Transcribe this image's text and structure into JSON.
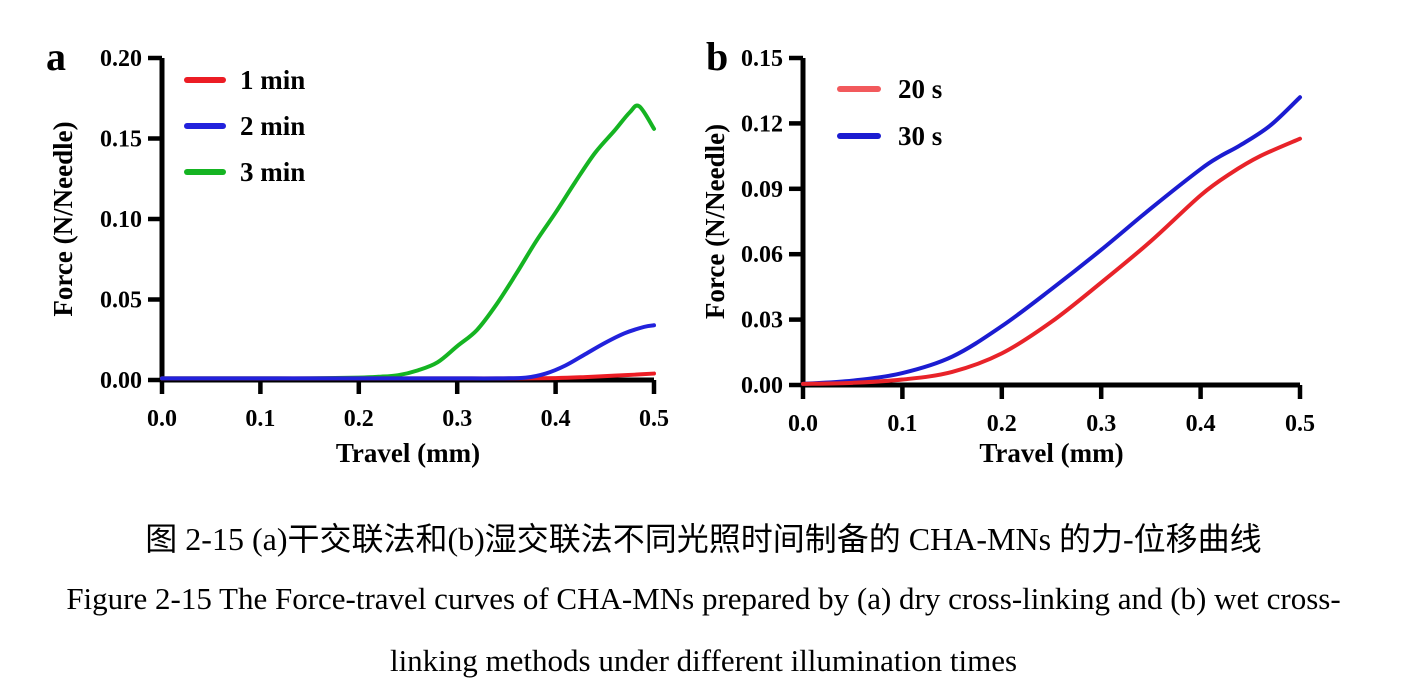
{
  "figure": {
    "caption_zh": "图 2-15 (a)干交联法和(b)湿交联法不同光照时间制备的 CHA-MNs 的力-位移曲线",
    "caption_en_line1": "Figure 2-15 The Force-travel curves of CHA-MNs prepared by (a) dry cross-linking and (b) wet cross-",
    "caption_en_line2": "linking methods under different illumination times"
  },
  "colors": {
    "axis": "#000000",
    "red_a": "#EC1C24",
    "blue_a": "#2222DC",
    "green_a": "#15B422",
    "red_b": "#E82329",
    "red_b_swatch": "#F2595C",
    "blue_b": "#1B1CD1"
  },
  "chart_data": [
    {
      "id": "a",
      "panel_label": "a",
      "type": "line",
      "title": "",
      "xlabel": "Travel (mm)",
      "ylabel": "Force (N/Needle)",
      "xlim": [
        0,
        0.5
      ],
      "ylim": [
        0,
        0.2
      ],
      "xticks": [
        "0.0",
        "0.1",
        "0.2",
        "0.3",
        "0.4",
        "0.5"
      ],
      "yticks": [
        "0.00",
        "0.05",
        "0.10",
        "0.15",
        "0.20"
      ],
      "grid": false,
      "legend_position": "top-left-inside",
      "series": [
        {
          "name": "1 min",
          "color": "#EC1C24",
          "x": [
            0,
            0.05,
            0.1,
            0.15,
            0.2,
            0.25,
            0.3,
            0.35,
            0.4,
            0.43,
            0.46,
            0.48,
            0.5
          ],
          "y": [
            0.001,
            0.001,
            0.001,
            0.001,
            0.001,
            0.001,
            0.001,
            0.001,
            0.0012,
            0.0018,
            0.0027,
            0.0033,
            0.004
          ]
        },
        {
          "name": "2 min",
          "color": "#2222DC",
          "x": [
            0,
            0.05,
            0.1,
            0.15,
            0.2,
            0.25,
            0.3,
            0.34,
            0.37,
            0.39,
            0.41,
            0.43,
            0.45,
            0.47,
            0.49,
            0.5
          ],
          "y": [
            0.001,
            0.001,
            0.001,
            0.001,
            0.001,
            0.001,
            0.001,
            0.001,
            0.0015,
            0.004,
            0.009,
            0.016,
            0.023,
            0.029,
            0.033,
            0.034
          ]
        },
        {
          "name": "3 min",
          "color": "#15B422",
          "x": [
            0,
            0.05,
            0.1,
            0.15,
            0.2,
            0.22,
            0.24,
            0.26,
            0.28,
            0.3,
            0.32,
            0.34,
            0.36,
            0.38,
            0.4,
            0.42,
            0.44,
            0.46,
            0.475,
            0.485,
            0.5
          ],
          "y": [
            0.001,
            0.001,
            0.001,
            0.001,
            0.0015,
            0.002,
            0.003,
            0.006,
            0.011,
            0.021,
            0.031,
            0.047,
            0.066,
            0.086,
            0.104,
            0.123,
            0.141,
            0.155,
            0.166,
            0.17,
            0.156
          ]
        }
      ]
    },
    {
      "id": "b",
      "panel_label": "b",
      "type": "line",
      "title": "",
      "xlabel": "Travel (mm)",
      "ylabel": "Force (N/Needle)",
      "xlim": [
        0,
        0.5
      ],
      "ylim": [
        0,
        0.15
      ],
      "xticks": [
        "0.0",
        "0.1",
        "0.2",
        "0.3",
        "0.4",
        "0.5"
      ],
      "yticks": [
        "0.00",
        "0.03",
        "0.06",
        "0.09",
        "0.12",
        "0.15"
      ],
      "grid": false,
      "legend_position": "top-left-inside",
      "series": [
        {
          "name": "20 s",
          "color": "#E82329",
          "swatch_color": "#F2595C",
          "x": [
            0,
            0.05,
            0.1,
            0.15,
            0.2,
            0.25,
            0.3,
            0.35,
            0.4,
            0.43,
            0.46,
            0.5
          ],
          "y": [
            0.0005,
            0.001,
            0.0025,
            0.006,
            0.0145,
            0.029,
            0.047,
            0.066,
            0.087,
            0.097,
            0.105,
            0.113
          ]
        },
        {
          "name": "30 s",
          "color": "#1B1CD1",
          "x": [
            0,
            0.05,
            0.1,
            0.15,
            0.2,
            0.25,
            0.3,
            0.35,
            0.4,
            0.42,
            0.44,
            0.47,
            0.5
          ],
          "y": [
            0.0005,
            0.002,
            0.0055,
            0.013,
            0.027,
            0.044,
            0.062,
            0.081,
            0.099,
            0.105,
            0.11,
            0.119,
            0.132
          ]
        }
      ]
    }
  ]
}
